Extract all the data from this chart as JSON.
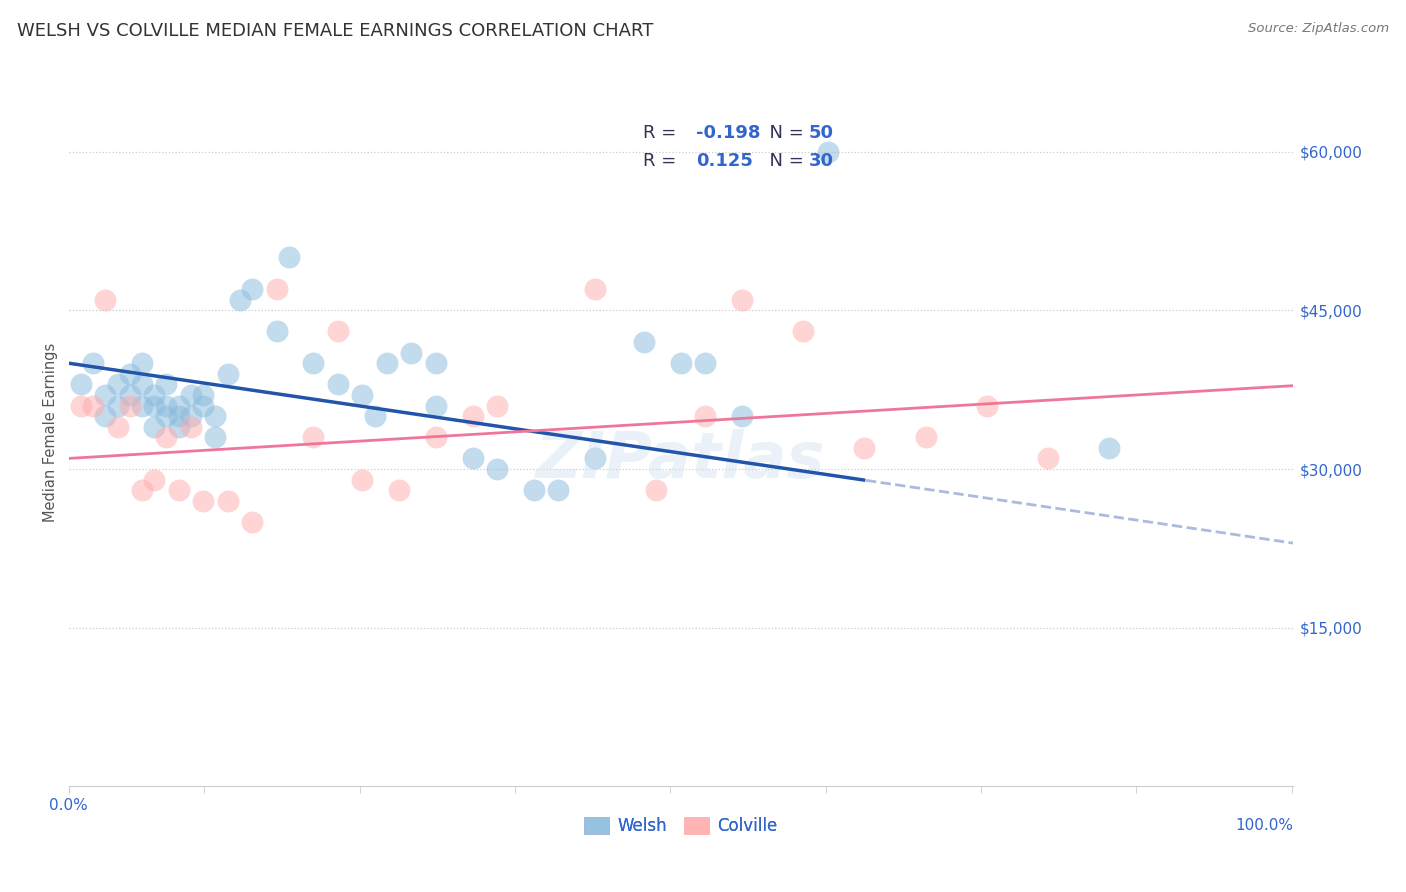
{
  "title": "WELSH VS COLVILLE MEDIAN FEMALE EARNINGS CORRELATION CHART",
  "source_text": "Source: ZipAtlas.com",
  "ylabel": "Median Female Earnings",
  "y_tick_labels": [
    "$15,000",
    "$30,000",
    "$45,000",
    "$60,000"
  ],
  "y_tick_values": [
    15000,
    30000,
    45000,
    60000
  ],
  "ylim": [
    0,
    67000
  ],
  "xlim": [
    0.0,
    1.0
  ],
  "legend_blue_r": "-0.198",
  "legend_blue_n": "50",
  "legend_pink_r": "0.125",
  "legend_pink_n": "30",
  "blue_scatter_color": "#88BBDD",
  "pink_scatter_color": "#FFAAAA",
  "blue_line_color": "#2255AA",
  "pink_line_color": "#EE7799",
  "dashed_line_color": "#AABBDD",
  "background_color": "#FFFFFF",
  "grid_color": "#CCCCCC",
  "title_color": "#333333",
  "axis_label_color": "#3366CC",
  "legend_r_color": "#333355",
  "legend_n_color": "#3366CC",
  "welsh_x": [
    0.01,
    0.02,
    0.03,
    0.03,
    0.04,
    0.04,
    0.05,
    0.05,
    0.06,
    0.06,
    0.06,
    0.07,
    0.07,
    0.07,
    0.08,
    0.08,
    0.08,
    0.09,
    0.09,
    0.09,
    0.1,
    0.1,
    0.11,
    0.11,
    0.12,
    0.12,
    0.13,
    0.14,
    0.15,
    0.17,
    0.18,
    0.2,
    0.22,
    0.24,
    0.25,
    0.26,
    0.28,
    0.3,
    0.3,
    0.33,
    0.35,
    0.38,
    0.4,
    0.43,
    0.47,
    0.5,
    0.52,
    0.55,
    0.62,
    0.85
  ],
  "welsh_y": [
    38000,
    40000,
    37000,
    35000,
    38000,
    36000,
    37000,
    39000,
    36000,
    38000,
    40000,
    36000,
    34000,
    37000,
    36000,
    38000,
    35000,
    35000,
    36000,
    34000,
    37000,
    35000,
    37000,
    36000,
    35000,
    33000,
    39000,
    46000,
    47000,
    43000,
    50000,
    40000,
    38000,
    37000,
    35000,
    40000,
    41000,
    40000,
    36000,
    31000,
    30000,
    28000,
    28000,
    31000,
    42000,
    40000,
    40000,
    35000,
    60000,
    32000
  ],
  "colville_x": [
    0.01,
    0.02,
    0.03,
    0.04,
    0.05,
    0.06,
    0.07,
    0.08,
    0.09,
    0.1,
    0.11,
    0.13,
    0.15,
    0.17,
    0.2,
    0.22,
    0.24,
    0.27,
    0.3,
    0.33,
    0.35,
    0.43,
    0.48,
    0.52,
    0.55,
    0.6,
    0.65,
    0.7,
    0.75,
    0.8
  ],
  "colville_y": [
    36000,
    36000,
    46000,
    34000,
    36000,
    28000,
    29000,
    33000,
    28000,
    34000,
    27000,
    27000,
    25000,
    47000,
    33000,
    43000,
    29000,
    28000,
    33000,
    35000,
    36000,
    47000,
    28000,
    35000,
    46000,
    43000,
    32000,
    33000,
    36000,
    31000
  ],
  "watermark": "ZIPatlas"
}
